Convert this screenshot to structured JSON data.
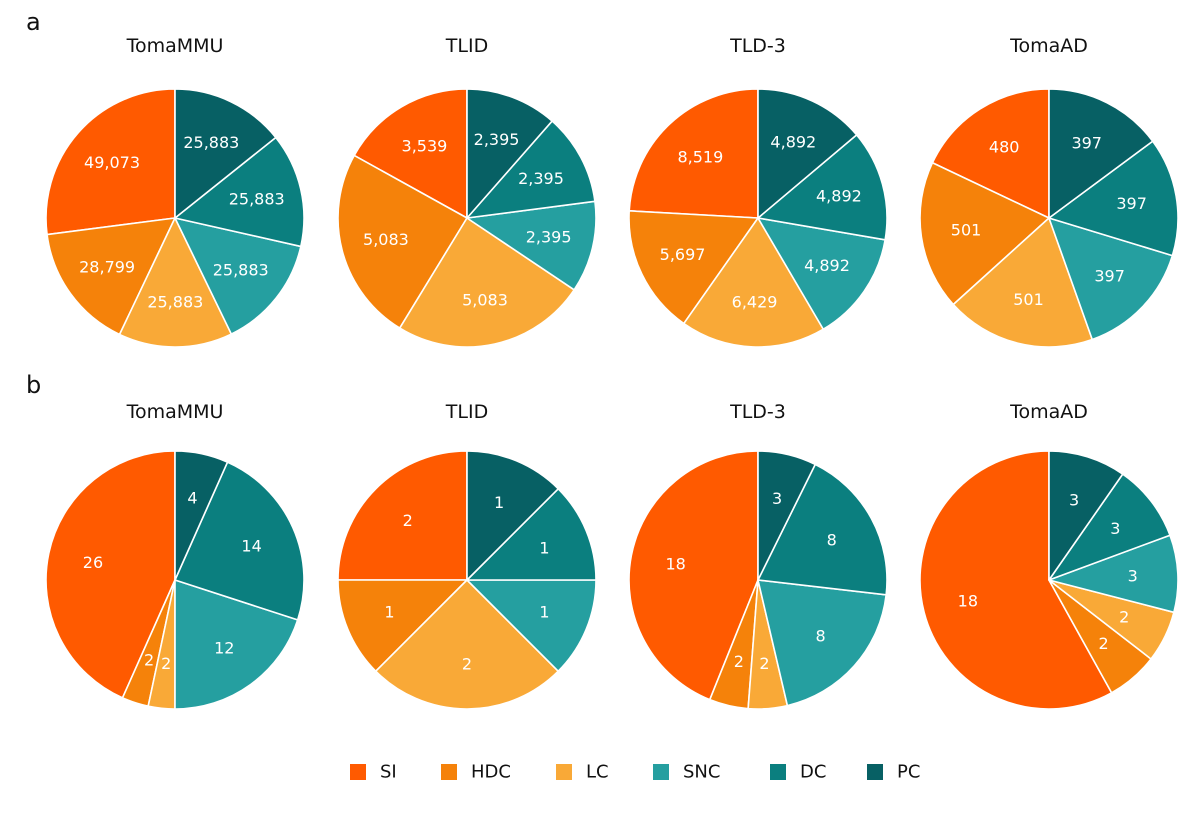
{
  "panels": [
    {
      "letter": "a"
    },
    {
      "letter": "b"
    }
  ],
  "chart_data": [
    {
      "type": "pie",
      "panel": "a",
      "title": "TomaMMU",
      "categories": [
        "SI",
        "HDC",
        "LC",
        "SNC",
        "DC",
        "PC"
      ],
      "values": [
        49073,
        28799,
        25883,
        25883,
        25883,
        25883
      ],
      "labels": [
        "49,073",
        "28,799",
        "25,883",
        "25,883",
        "25,883",
        "25,883"
      ]
    },
    {
      "type": "pie",
      "panel": "a",
      "title": "TLID",
      "categories": [
        "SI",
        "HDC",
        "LC",
        "SNC",
        "DC",
        "PC"
      ],
      "values": [
        3539,
        5083,
        5083,
        2395,
        2395,
        2395
      ],
      "labels": [
        "3,539",
        "5,083",
        "5,083",
        "2,395",
        "2,395",
        "2,395"
      ]
    },
    {
      "type": "pie",
      "panel": "a",
      "title": "TLD-3",
      "categories": [
        "SI",
        "HDC",
        "LC",
        "SNC",
        "DC",
        "PC"
      ],
      "values": [
        8519,
        5697,
        6429,
        4892,
        4892,
        4892
      ],
      "labels": [
        "8,519",
        "5,697",
        "6,429",
        "4,892",
        "4,892",
        "4,892"
      ]
    },
    {
      "type": "pie",
      "panel": "a",
      "title": "TomaAD",
      "categories": [
        "SI",
        "HDC",
        "LC",
        "SNC",
        "DC",
        "PC"
      ],
      "values": [
        480,
        501,
        501,
        397,
        397,
        397
      ],
      "labels": [
        "480",
        "501",
        "501",
        "397",
        "397",
        "397"
      ]
    },
    {
      "type": "pie",
      "panel": "b",
      "title": "TomaMMU",
      "categories": [
        "SI",
        "HDC",
        "LC",
        "SNC",
        "DC",
        "PC"
      ],
      "values": [
        26,
        2,
        2,
        12,
        14,
        4
      ],
      "labels": [
        "26",
        "2",
        "2",
        "12",
        "14",
        "4"
      ]
    },
    {
      "type": "pie",
      "panel": "b",
      "title": "TLID",
      "categories": [
        "SI",
        "HDC",
        "LC",
        "SNC",
        "DC",
        "PC"
      ],
      "values": [
        2,
        1,
        2,
        1,
        1,
        1
      ],
      "labels": [
        "2",
        "1",
        "2",
        "1",
        "1",
        "1"
      ]
    },
    {
      "type": "pie",
      "panel": "b",
      "title": "TLD-3",
      "categories": [
        "SI",
        "HDC",
        "LC",
        "SNC",
        "DC",
        "PC"
      ],
      "values": [
        18,
        2,
        2,
        8,
        8,
        3
      ],
      "labels": [
        "18",
        "2",
        "2",
        "8",
        "8",
        "3"
      ]
    },
    {
      "type": "pie",
      "panel": "b",
      "title": "TomaAD",
      "categories": [
        "SI",
        "HDC",
        "LC",
        "SNC",
        "DC",
        "PC"
      ],
      "values": [
        18,
        2,
        2,
        3,
        3,
        3
      ],
      "labels": [
        "18",
        "2",
        "2",
        "3",
        "3",
        "3"
      ]
    }
  ],
  "legend": [
    {
      "label": "SI",
      "color": "#FF5A00"
    },
    {
      "label": "HDC",
      "color": "#F5820A"
    },
    {
      "label": "LC",
      "color": "#F9A937"
    },
    {
      "label": "SNC",
      "color": "#259FA0"
    },
    {
      "label": "DC",
      "color": "#0B7F7F"
    },
    {
      "label": "PC",
      "color": "#076064"
    }
  ],
  "colors": {
    "slice_border": "#ffffff",
    "label_text": "#ffffff",
    "title_text": "#111111"
  }
}
